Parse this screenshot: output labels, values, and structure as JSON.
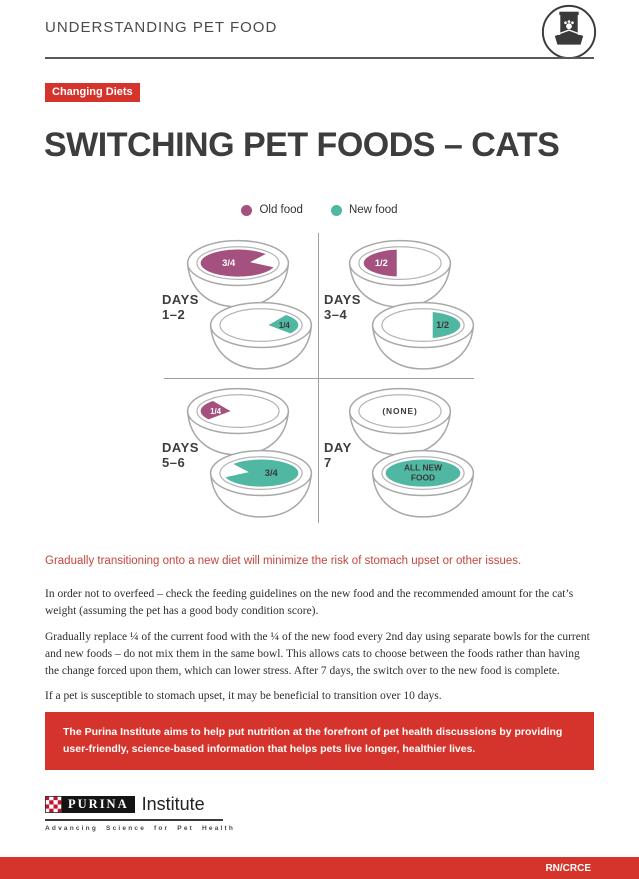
{
  "header": {
    "title": "UNDERSTANDING PET FOOD",
    "icon": "pet-food-bag-and-bowl"
  },
  "badge": "Changing Diets",
  "title": "SWITCHING PET FOODS – CATS",
  "legend": {
    "items": [
      {
        "key": "old",
        "label": "Old food"
      },
      {
        "key": "new",
        "label": "New food"
      }
    ]
  },
  "diagram": {
    "quadrants": [
      {
        "day_word": "DAYS",
        "day_num": "1–2",
        "top": {
          "food": "old",
          "shape": "major-right",
          "label_lines": [
            "3/4"
          ],
          "label_tone": "light"
        },
        "bottom": {
          "food": "new",
          "shape": "wedge-right",
          "label_lines": [
            "1/4"
          ],
          "label_tone": "dark"
        }
      },
      {
        "day_word": "DAYS",
        "day_num": "3–4",
        "top": {
          "food": "old",
          "shape": "half-left",
          "label_lines": [
            "1/2"
          ],
          "label_tone": "light"
        },
        "bottom": {
          "food": "new",
          "shape": "half-right",
          "label_lines": [
            "1/2"
          ],
          "label_tone": "dark"
        }
      },
      {
        "day_word": "DAYS",
        "day_num": "5–6",
        "top": {
          "food": "old",
          "shape": "wedge-left",
          "label_lines": [
            "1/4"
          ],
          "label_tone": "light"
        },
        "bottom": {
          "food": "new",
          "shape": "major-left",
          "label_lines": [
            "3/4"
          ],
          "label_tone": "dark"
        }
      },
      {
        "day_word": "DAY",
        "day_num": "7",
        "top": {
          "food": "none",
          "shape": "none",
          "label_lines": [
            "(NONE)"
          ],
          "label_tone": "dark"
        },
        "bottom": {
          "food": "new",
          "shape": "full",
          "label_lines": [
            "ALL NEW",
            "FOOD"
          ],
          "label_tone": "dark"
        }
      }
    ]
  },
  "highlight": "Gradually transitioning onto a new diet will minimize the risk of stomach upset or other issues.",
  "paragraphs": [
    "In order not to overfeed – check the feeding guidelines on the new food and the recommended amount for the cat’s weight (assuming the pet has a good body condition score).",
    "Gradually replace ¼ of the current food with the ¼ of the new food every 2nd day using separate bowls for the current and new foods – do not mix them in the same bowl. This allows cats to choose between the foods rather than having the change forced upon them, which can lower stress. After 7 days, the switch over to the new food is complete.",
    "If a pet is susceptible to stomach upset, it may be beneficial to transition over 10 days."
  ],
  "callout": "The Purina Institute aims to help put nutrition at the forefront of pet health discussions by providing user-friendly, science-based information that helps pets live longer, healthier lives.",
  "logo": {
    "brand": "PURINA",
    "suffix": "Institute",
    "tagline": "Advancing Science for Pet Health"
  },
  "footer": {
    "code": "RN/CRCE"
  },
  "colors": {
    "old_food": "#a5517f",
    "new_food": "#50b7a2",
    "accent_red": "#d5342c",
    "highlight_red": "#c2463c"
  }
}
